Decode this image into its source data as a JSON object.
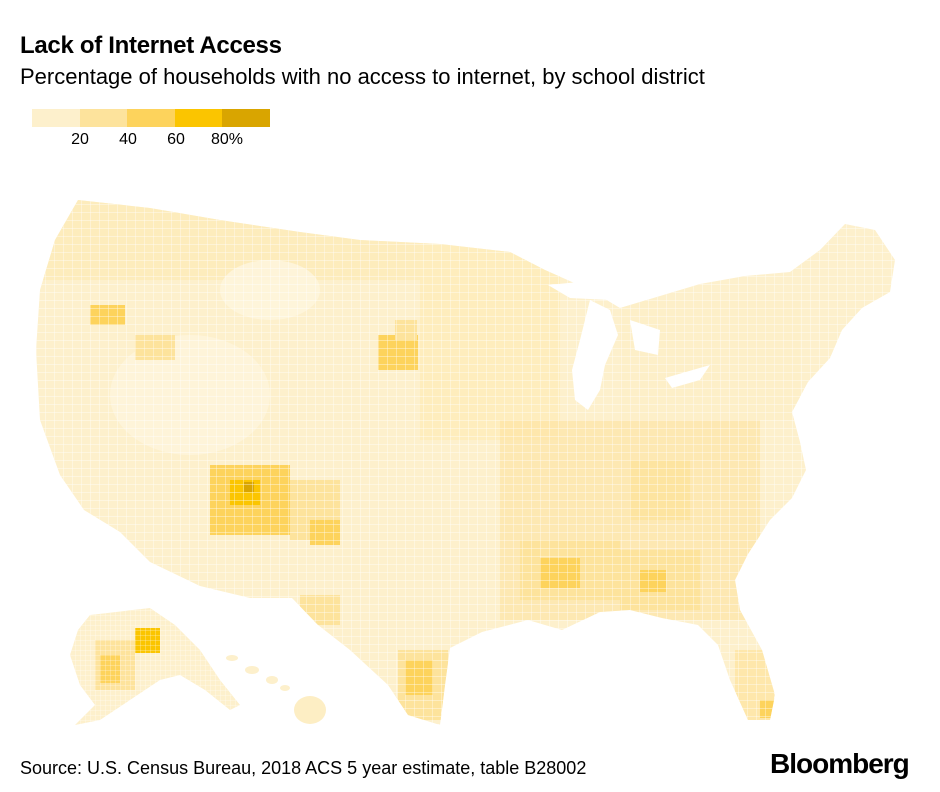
{
  "header": {
    "title": "Lack of Internet Access",
    "subtitle": "Percentage of households with no access to internet, by school district"
  },
  "legend": {
    "swatch_colors": [
      "#fdf0cc",
      "#fde39c",
      "#fdd35c",
      "#fbc500",
      "#d9a500"
    ],
    "ticks": [
      "20",
      "40",
      "60",
      "80%"
    ]
  },
  "map": {
    "regions": [
      "contiguous-us",
      "alaska",
      "hawaii"
    ],
    "hotspots": [
      "navajo-nation-southwest",
      "south-texas-border",
      "mississippi-delta",
      "south-dakota-reservations",
      "western-alaska",
      "rural-georgia"
    ]
  },
  "footer": {
    "source": "Source: U.S. Census Bureau, 2018 ACS 5 year estimate, table B28002",
    "brand": "Bloomberg"
  }
}
